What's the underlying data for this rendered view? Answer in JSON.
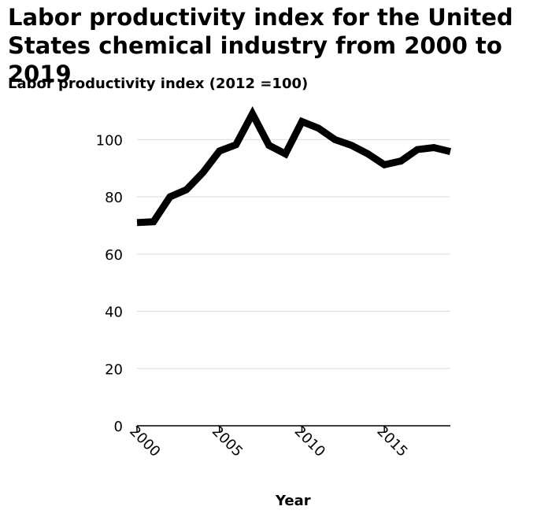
{
  "chart_data": {
    "type": "line",
    "title": "Labor productivity index for the United States chemical industry from 2000 to 2019",
    "ylabel": "Labor productivity index (2012 =100)",
    "xlabel": "Year",
    "x": [
      2000,
      2001,
      2002,
      2003,
      2004,
      2005,
      2006,
      2007,
      2008,
      2009,
      2010,
      2011,
      2012,
      2013,
      2014,
      2015,
      2016,
      2017,
      2018,
      2019
    ],
    "series": [
      {
        "values": [
          71,
          71.3,
          80,
          82.5,
          88.5,
          96,
          98.2,
          109,
          98,
          95,
          106.3,
          104,
          100,
          98,
          95,
          91.2,
          92.5,
          96.5,
          97.2,
          95.8
        ]
      }
    ],
    "xlim": [
      2000,
      2019
    ],
    "ylim": [
      0,
      110
    ],
    "xticks": [
      "2000",
      "2005",
      "2010",
      "2015"
    ],
    "yticks": [
      "0",
      "20",
      "40",
      "60",
      "80",
      "100"
    ],
    "grid": "horizontal",
    "line_color": "#000000",
    "grid_color": "#dddddd"
  }
}
